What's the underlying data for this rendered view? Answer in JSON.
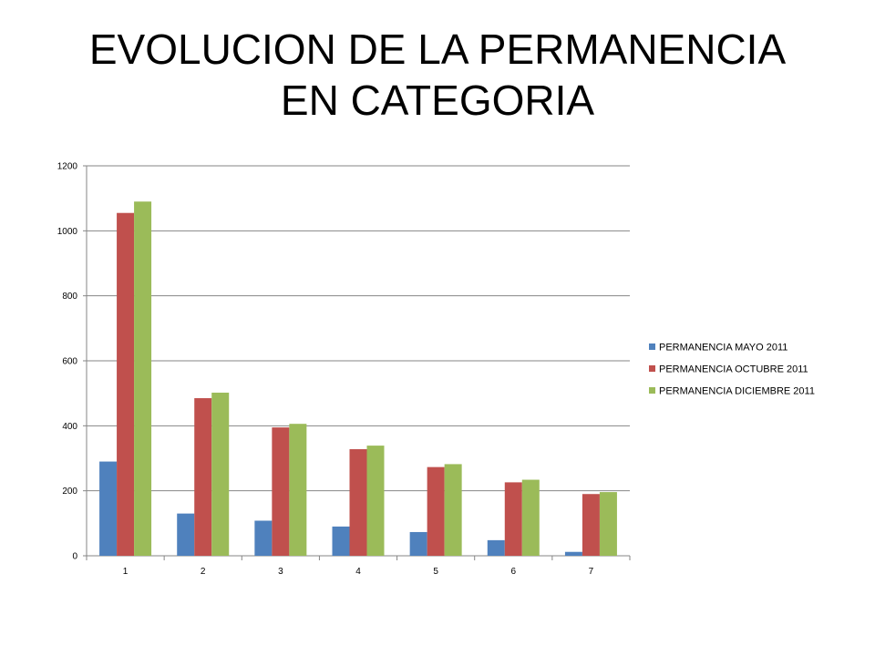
{
  "title": {
    "line1": "EVOLUCION DE LA PERMANENCIA",
    "line2": "EN CATEGORIA"
  },
  "chart_data": {
    "type": "bar",
    "title": "EVOLUCION DE LA PERMANENCIA EN CATEGORIA",
    "xlabel": "",
    "ylabel": "",
    "categories": [
      "1",
      "2",
      "3",
      "4",
      "5",
      "6",
      "7"
    ],
    "ylim": [
      0,
      1200
    ],
    "yticks": [
      0,
      200,
      400,
      600,
      800,
      1000,
      1200
    ],
    "grid": true,
    "legend_position": "right",
    "series": [
      {
        "name": "PERMANENCIA MAYO 2011",
        "color": "#4F81BD",
        "values": [
          290,
          130,
          108,
          90,
          73,
          48,
          12
        ]
      },
      {
        "name": "PERMANENCIA OCTUBRE 2011",
        "color": "#C0504D",
        "values": [
          1055,
          485,
          395,
          328,
          273,
          226,
          190
        ]
      },
      {
        "name": "PERMANENCIA DICIEMBRE 2011",
        "color": "#9BBB59",
        "values": [
          1090,
          502,
          406,
          339,
          282,
          234,
          196
        ]
      }
    ]
  }
}
